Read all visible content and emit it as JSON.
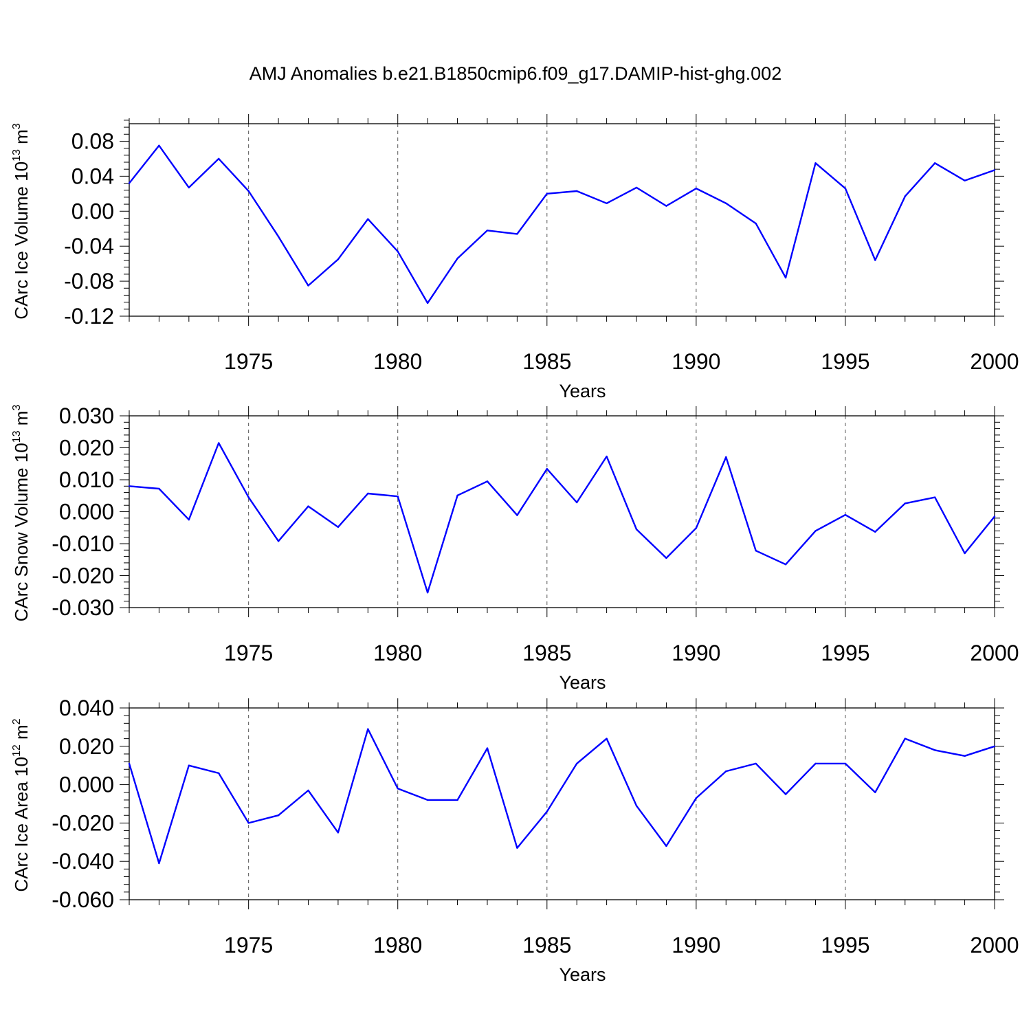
{
  "title": "AMJ Anomalies b.e21.B1850cmip6.f09_g17.DAMIP-hist-ghg.002",
  "chart_data": [
    {
      "type": "line",
      "ylabel": {
        "base": "CArc Ice Volume 10",
        "exponent": "13",
        "unit": " m",
        "unit_exponent": "3"
      },
      "xlabel": "Years",
      "xlim": [
        1971,
        2000
      ],
      "ylim": [
        -0.12,
        0.1
      ],
      "xticks": [
        1975,
        1980,
        1985,
        1990,
        1995,
        2000
      ],
      "xtick_labels": [
        "1975",
        "1980",
        "1985",
        "1990",
        "1995",
        "2000"
      ],
      "yticks": [
        -0.12,
        -0.08,
        -0.04,
        0.0,
        0.04,
        0.08
      ],
      "ytick_labels": [
        "-0.12",
        "-0.08",
        "-0.04",
        "0.00",
        "0.04",
        "0.08"
      ],
      "grid": "vertical-dashed",
      "line_color": "#0000ff",
      "x": [
        1971,
        1972,
        1973,
        1974,
        1975,
        1976,
        1977,
        1978,
        1979,
        1980,
        1981,
        1982,
        1983,
        1984,
        1985,
        1986,
        1987,
        1988,
        1989,
        1990,
        1991,
        1992,
        1993,
        1994,
        1995,
        1996,
        1997,
        1998,
        1999,
        2000
      ],
      "values": [
        0.032,
        0.075,
        0.027,
        0.06,
        0.023,
        -0.029,
        -0.085,
        -0.055,
        -0.009,
        -0.046,
        -0.105,
        -0.054,
        -0.022,
        -0.026,
        0.02,
        0.023,
        0.009,
        0.027,
        0.006,
        0.026,
        0.009,
        -0.014,
        -0.076,
        0.055,
        0.026,
        -0.056,
        0.017,
        0.055,
        0.035,
        0.047
      ]
    },
    {
      "type": "line",
      "ylabel": {
        "base": "CArc Snow Volume 10",
        "exponent": "13",
        "unit": " m",
        "unit_exponent": "3"
      },
      "xlabel": "Years",
      "xlim": [
        1971,
        2000
      ],
      "ylim": [
        -0.03,
        0.03
      ],
      "xticks": [
        1975,
        1980,
        1985,
        1990,
        1995,
        2000
      ],
      "xtick_labels": [
        "1975",
        "1980",
        "1985",
        "1990",
        "1995",
        "2000"
      ],
      "yticks": [
        -0.03,
        -0.02,
        -0.01,
        0.0,
        0.01,
        0.02,
        0.03
      ],
      "ytick_labels": [
        "-0.030",
        "-0.020",
        "-0.010",
        "0.000",
        "0.010",
        "0.020",
        "0.030"
      ],
      "grid": "vertical-dashed",
      "line_color": "#0000ff",
      "x": [
        1971,
        1972,
        1973,
        1974,
        1975,
        1976,
        1977,
        1978,
        1979,
        1980,
        1981,
        1982,
        1983,
        1984,
        1985,
        1986,
        1987,
        1988,
        1989,
        1990,
        1991,
        1992,
        1993,
        1994,
        1995,
        1996,
        1997,
        1998,
        1999,
        2000
      ],
      "values": [
        0.008,
        0.0072,
        -0.0025,
        0.0215,
        0.0045,
        -0.0092,
        0.0017,
        -0.0048,
        0.0057,
        0.0048,
        -0.0253,
        0.0051,
        0.0095,
        -0.0011,
        0.0134,
        0.0029,
        0.0173,
        -0.0055,
        -0.0145,
        -0.0051,
        0.0171,
        -0.0122,
        -0.0165,
        -0.006,
        -0.001,
        -0.0063,
        0.0026,
        0.0045,
        -0.013,
        -0.0015
      ]
    },
    {
      "type": "line",
      "ylabel": {
        "base": "CArc Ice Area 10",
        "exponent": "12",
        "unit": " m",
        "unit_exponent": "2"
      },
      "xlabel": "Years",
      "xlim": [
        1971,
        2000
      ],
      "ylim": [
        -0.06,
        0.04
      ],
      "xticks": [
        1975,
        1980,
        1985,
        1990,
        1995,
        2000
      ],
      "xtick_labels": [
        "1975",
        "1980",
        "1985",
        "1990",
        "1995",
        "2000"
      ],
      "yticks": [
        -0.06,
        -0.04,
        -0.02,
        0.0,
        0.02,
        0.04
      ],
      "ytick_labels": [
        "-0.060",
        "-0.040",
        "-0.020",
        "0.000",
        "0.020",
        "0.040"
      ],
      "grid": "vertical-dashed",
      "line_color": "#0000ff",
      "x": [
        1971,
        1972,
        1973,
        1974,
        1975,
        1976,
        1977,
        1978,
        1979,
        1980,
        1981,
        1982,
        1983,
        1984,
        1985,
        1986,
        1987,
        1988,
        1989,
        1990,
        1991,
        1992,
        1993,
        1994,
        1995,
        1996,
        1997,
        1998,
        1999,
        2000
      ],
      "values": [
        0.011,
        -0.041,
        0.01,
        0.006,
        -0.02,
        -0.016,
        -0.003,
        -0.025,
        0.029,
        -0.002,
        -0.008,
        -0.008,
        0.019,
        -0.033,
        -0.014,
        0.011,
        0.024,
        -0.011,
        -0.032,
        -0.007,
        0.007,
        0.011,
        -0.005,
        0.011,
        0.011,
        -0.004,
        0.024,
        0.018,
        0.015,
        0.02
      ]
    }
  ]
}
